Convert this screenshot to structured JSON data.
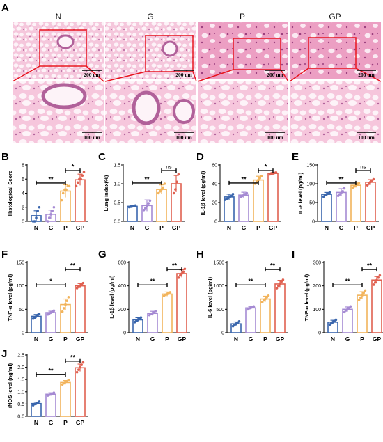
{
  "panel_a": {
    "label": "A",
    "groups": [
      "N",
      "G",
      "P",
      "GP"
    ],
    "scale_top": "200 um",
    "scale_bottom": "100 um"
  },
  "colors": {
    "N": "#3a66ad",
    "G": "#a58ad3",
    "P": "#f2b45c",
    "GP": "#e06050",
    "zoom_box": "#e8141e",
    "tissue": "#f3c2d8",
    "tissue_dark": "#c97aa6",
    "airspace": "#fbf1f6"
  },
  "chart_data": [
    {
      "id": "B",
      "type": "bar",
      "categories": [
        "N",
        "G",
        "P",
        "GP"
      ],
      "ylabel": "Histological Score",
      "yticks": [
        0,
        2,
        4,
        6,
        8
      ],
      "ylim": [
        0,
        8
      ],
      "values": [
        0.8,
        1.0,
        4.3,
        5.9
      ],
      "errors": [
        0.7,
        0.6,
        0.9,
        0.8
      ],
      "points": [
        [
          0,
          0,
          0.5,
          1.5,
          2
        ],
        [
          0,
          0.5,
          1,
          1.5,
          2
        ],
        [
          3,
          4,
          4.5,
          4.5,
          5,
          5
        ],
        [
          5,
          5.5,
          6,
          6,
          6.5,
          7
        ]
      ],
      "brackets": [
        {
          "from": "N",
          "to": "P",
          "label": "**"
        },
        {
          "from": "P",
          "to": "GP",
          "label": "*"
        }
      ]
    },
    {
      "id": "C",
      "type": "bar",
      "categories": [
        "N",
        "G",
        "P",
        "GP"
      ],
      "ylabel": "Lung index(%)",
      "yticks": [
        0.0,
        0.5,
        1.0,
        1.5
      ],
      "ylim": [
        0,
        1.5
      ],
      "values": [
        0.4,
        0.42,
        0.85,
        1.0
      ],
      "errors": [
        0.03,
        0.15,
        0.12,
        0.22
      ],
      "points": [
        [
          0.38,
          0.39,
          0.4,
          0.41,
          0.42
        ],
        [
          0.3,
          0.35,
          0.42,
          0.48,
          0.55
        ],
        [
          0.75,
          0.8,
          0.85,
          0.9,
          1.0
        ],
        [
          0.75,
          0.85,
          1.05,
          1.25
        ]
      ],
      "brackets": [
        {
          "from": "N",
          "to": "P",
          "label": "**"
        },
        {
          "from": "P",
          "to": "GP",
          "label": "ns"
        }
      ]
    },
    {
      "id": "D",
      "type": "bar",
      "categories": [
        "N",
        "G",
        "P",
        "GP"
      ],
      "ylabel": "IL-1β level (pg/ml)",
      "yticks": [
        0,
        20,
        40,
        60
      ],
      "ylim": [
        0,
        60
      ],
      "values": [
        26,
        28,
        44,
        51
      ],
      "errors": [
        3,
        3,
        4,
        1
      ],
      "points": [
        [
          23,
          24,
          25,
          26,
          27,
          29
        ],
        [
          26,
          27,
          28,
          29,
          30
        ],
        [
          40,
          42,
          44,
          46,
          48
        ],
        [
          50,
          50.5,
          51,
          51.5,
          52
        ]
      ],
      "brackets": [
        {
          "from": "N",
          "to": "P",
          "label": "**"
        },
        {
          "from": "P",
          "to": "GP",
          "label": "*"
        }
      ]
    },
    {
      "id": "E",
      "type": "bar",
      "categories": [
        "N",
        "G",
        "P",
        "GP"
      ],
      "ylabel": "IL-6 level (pg/ml)",
      "yticks": [
        0,
        50,
        100,
        150
      ],
      "ylim": [
        0,
        150
      ],
      "values": [
        72,
        77,
        96,
        104
      ],
      "errors": [
        5,
        10,
        6,
        7
      ],
      "points": [
        [
          66,
          70,
          72,
          74,
          77
        ],
        [
          68,
          72,
          76,
          80,
          88
        ],
        [
          90,
          93,
          96,
          99,
          102
        ],
        [
          96,
          100,
          105,
          108,
          112
        ]
      ],
      "brackets": [
        {
          "from": "N",
          "to": "P",
          "label": "**"
        },
        {
          "from": "P",
          "to": "GP",
          "label": "ns"
        }
      ]
    },
    {
      "id": "F",
      "type": "bar",
      "categories": [
        "N",
        "G",
        "P",
        "GP"
      ],
      "ylabel": "TNF-α level (pg/ml)",
      "yticks": [
        0,
        50,
        100,
        150
      ],
      "ylim": [
        0,
        150
      ],
      "values": [
        35,
        43,
        60,
        100
      ],
      "errors": [
        4,
        3,
        12,
        5
      ],
      "points": [
        [
          30,
          32,
          35,
          38,
          40
        ],
        [
          39,
          41,
          43,
          45,
          47
        ],
        [
          45,
          52,
          60,
          68,
          76
        ],
        [
          95,
          98,
          100,
          103,
          106
        ]
      ],
      "brackets": [
        {
          "from": "N",
          "to": "P",
          "label": "*"
        },
        {
          "from": "P",
          "to": "GP",
          "label": "**"
        }
      ]
    },
    {
      "id": "G",
      "type": "bar",
      "categories": [
        "N",
        "G",
        "P",
        "GP"
      ],
      "ylabel": "IL-1β level (pg/ml)",
      "yticks": [
        0,
        200,
        400,
        600
      ],
      "ylim": [
        0,
        600
      ],
      "values": [
        110,
        165,
        330,
        505
      ],
      "errors": [
        18,
        18,
        18,
        32
      ],
      "points": [
        [
          90,
          100,
          110,
          120,
          130
        ],
        [
          150,
          160,
          165,
          175,
          185
        ],
        [
          315,
          325,
          330,
          340,
          345
        ],
        [
          470,
          490,
          505,
          520,
          545
        ]
      ],
      "brackets": [
        {
          "from": "N",
          "to": "P",
          "label": "**"
        },
        {
          "from": "P",
          "to": "GP",
          "label": "**"
        }
      ]
    },
    {
      "id": "H",
      "type": "bar",
      "categories": [
        "N",
        "G",
        "P",
        "GP"
      ],
      "ylabel": "IL-6 level (pg/ml)",
      "yticks": [
        0,
        500,
        1000,
        1500
      ],
      "ylim": [
        0,
        1500
      ],
      "values": [
        190,
        530,
        720,
        1040
      ],
      "errors": [
        40,
        30,
        60,
        80
      ],
      "points": [
        [
          140,
          170,
          190,
          210,
          240
        ],
        [
          500,
          520,
          530,
          545,
          560
        ],
        [
          650,
          690,
          720,
          760,
          790
        ],
        [
          950,
          1000,
          1040,
          1090,
          1130
        ]
      ],
      "brackets": [
        {
          "from": "N",
          "to": "P",
          "label": "**"
        },
        {
          "from": "P",
          "to": "GP",
          "label": "**"
        }
      ]
    },
    {
      "id": "I",
      "type": "bar",
      "categories": [
        "N",
        "G",
        "P",
        "GP"
      ],
      "ylabel": "TNF-α level (pg/ml)",
      "yticks": [
        0,
        100,
        200,
        300
      ],
      "ylim": [
        0,
        300
      ],
      "values": [
        45,
        100,
        160,
        225
      ],
      "errors": [
        8,
        10,
        15,
        15
      ],
      "points": [
        [
          35,
          40,
          45,
          50,
          55
        ],
        [
          88,
          95,
          100,
          106,
          112
        ],
        [
          140,
          150,
          160,
          170,
          180
        ],
        [
          205,
          215,
          225,
          235,
          245
        ]
      ],
      "brackets": [
        {
          "from": "N",
          "to": "P",
          "label": "**"
        },
        {
          "from": "P",
          "to": "GP",
          "label": "**"
        }
      ]
    },
    {
      "id": "J",
      "type": "bar",
      "categories": [
        "N",
        "G",
        "P",
        "GP"
      ],
      "ylabel": "iNOS level (ng/ml)",
      "yticks": [
        0.0,
        0.5,
        1.0,
        1.5,
        2.0,
        2.5
      ],
      "ylim": [
        0,
        2.5
      ],
      "values": [
        0.52,
        0.9,
        1.38,
        1.98
      ],
      "errors": [
        0.06,
        0.06,
        0.08,
        0.15
      ],
      "points": [
        [
          0.45,
          0.5,
          0.52,
          0.55,
          0.6
        ],
        [
          0.85,
          0.88,
          0.9,
          0.93,
          0.96
        ],
        [
          1.3,
          1.35,
          1.4,
          1.43,
          1.48
        ],
        [
          1.8,
          1.9,
          2.0,
          2.1,
          2.2
        ]
      ],
      "brackets": [
        {
          "from": "N",
          "to": "P",
          "label": "**"
        },
        {
          "from": "P",
          "to": "GP",
          "label": "**"
        }
      ]
    }
  ]
}
